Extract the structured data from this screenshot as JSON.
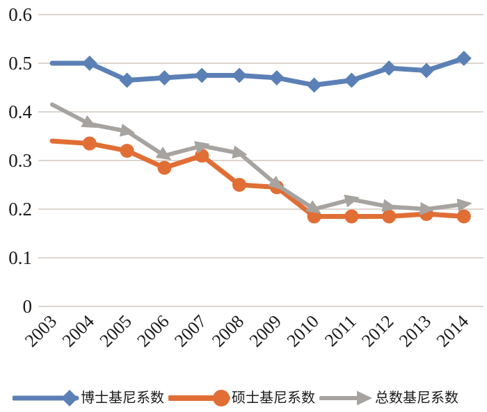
{
  "chart_data": {
    "type": "line",
    "x_labels": [
      "2003",
      "2004",
      "2005",
      "2006",
      "2007",
      "2008",
      "2009",
      "2010",
      "2011",
      "2012",
      "2013",
      "2014"
    ],
    "ylim": [
      0,
      0.6
    ],
    "yticks": [
      0,
      0.1,
      0.2,
      0.3,
      0.4,
      0.5,
      0.6
    ],
    "ytick_labels": [
      "0",
      "0.1",
      "0.2",
      "0.3",
      "0.4",
      "0.5",
      "0.6"
    ],
    "grid": true,
    "legend_position": "bottom",
    "series": [
      {
        "key": "doctor",
        "name": "博士基尼系数",
        "color": "#5B80B6",
        "marker": "diamond",
        "values": [
          0.5,
          0.5,
          0.465,
          0.47,
          0.475,
          0.475,
          0.47,
          0.455,
          0.465,
          0.49,
          0.485,
          0.51
        ]
      },
      {
        "key": "master",
        "name": "硕士基尼系数",
        "color": "#E06E35",
        "marker": "circle",
        "values": [
          0.34,
          0.335,
          0.32,
          0.285,
          0.31,
          0.25,
          0.245,
          0.185,
          0.185,
          0.185,
          0.19,
          0.185
        ]
      },
      {
        "key": "total",
        "name": "总数基尼系数",
        "color": "#A6A3A0",
        "marker": "arrow",
        "values": [
          0.415,
          0.375,
          0.36,
          0.31,
          0.33,
          0.315,
          0.25,
          0.2,
          0.22,
          0.205,
          0.2,
          0.21
        ]
      }
    ]
  },
  "colors": {
    "gridline": "#DCD5CF",
    "text": "#1A1A1A",
    "background": "#FFFFFF"
  }
}
